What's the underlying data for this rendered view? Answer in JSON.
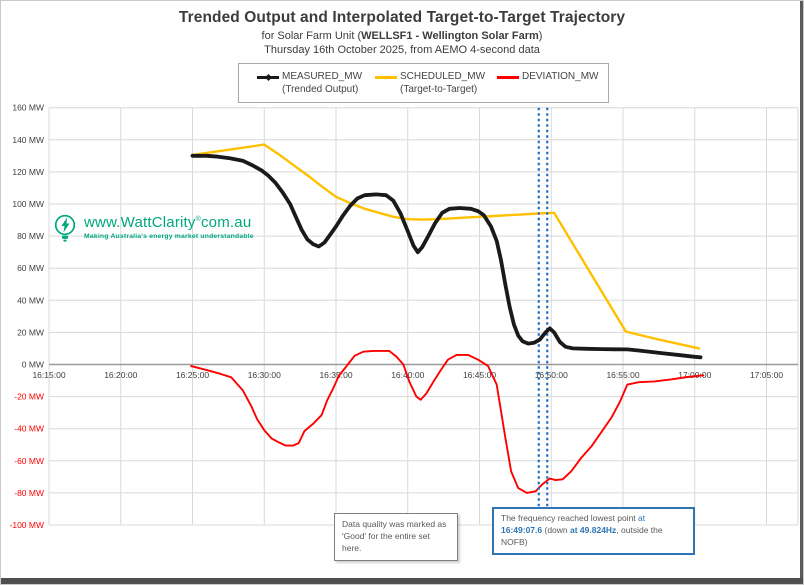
{
  "header": {
    "title": "Trended Output and Interpolated Target-to-Target Trajectory",
    "subtitle_prefix": "for Solar Farm Unit (",
    "subtitle_bold": "WELLSF1 - Wellington Solar Farm",
    "subtitle_suffix": ")",
    "dateline": "Thursday 16th October 2025, from AEMO 4-second data"
  },
  "legend": {
    "entries": [
      {
        "label": "MEASURED_MW",
        "sublabel": "(Trended Output)"
      },
      {
        "label": "SCHEDULED_MW",
        "sublabel": "(Target-to-Target)"
      },
      {
        "label": "DEVIATION_MW",
        "sublabel": ""
      }
    ]
  },
  "watermark": {
    "url_main": "www.WattClarity",
    "url_reg": "®",
    "url_tail": "com.au",
    "tagline": "Making Australia's energy market understandable",
    "color": "#00a87c"
  },
  "annotations": {
    "data_quality": {
      "text": "Data quality was marked as 'Good' for the entire set here."
    },
    "frequency": {
      "segments": [
        {
          "text": "The frequency reached lowest point ",
          "style": "plain"
        },
        {
          "text": "at ",
          "style": "blue"
        },
        {
          "text": "16:49:07.6",
          "style": "blue-bold"
        },
        {
          "text": " (down ",
          "style": "plain"
        },
        {
          "text": "at 49.824Hz",
          "style": "blue-bold"
        },
        {
          "text": ", outside the NOFB)",
          "style": "plain"
        }
      ]
    }
  },
  "chart_data": {
    "type": "line",
    "title": "Trended Output and Interpolated Target-to-Target Trajectory",
    "x_axis": {
      "ticks": [
        "16:15:00",
        "16:20:00",
        "16:25:00",
        "16:30:00",
        "16:35:00",
        "16:40:00",
        "16:45:00",
        "16:50:00",
        "16:55:00",
        "17:00:00",
        "17:05:00"
      ],
      "start_min": 15,
      "end_min": 65,
      "tick_interval_min": 5
    },
    "y_axis": {
      "min": -100,
      "max": 160,
      "step": 20,
      "unit": "MW",
      "negative_label_color": "#ff0000",
      "positive_label_color": "#404040"
    },
    "grid": {
      "color": "#d9d9d9",
      "zero_line_color": "#9b9b9b"
    },
    "series": [
      {
        "name": "MEASURED_MW",
        "color": "#1a1a1a",
        "points": [
          [
            25,
            130
          ],
          [
            26,
            130
          ],
          [
            26.8,
            129.5
          ],
          [
            27.6,
            128.5
          ],
          [
            28.5,
            127
          ],
          [
            29.2,
            124
          ],
          [
            29.8,
            121
          ],
          [
            30.3,
            117.5
          ],
          [
            30.8,
            113
          ],
          [
            31.3,
            107
          ],
          [
            31.8,
            100
          ],
          [
            32.2,
            92
          ],
          [
            32.6,
            84
          ],
          [
            33,
            78
          ],
          [
            33.4,
            75
          ],
          [
            33.8,
            73.5
          ],
          [
            34.2,
            76
          ],
          [
            34.6,
            81
          ],
          [
            35,
            86
          ],
          [
            35.5,
            93
          ],
          [
            36,
            99
          ],
          [
            36.5,
            103.5
          ],
          [
            37,
            105.5
          ],
          [
            37.8,
            106
          ],
          [
            38.5,
            105.5
          ],
          [
            39,
            102
          ],
          [
            39.5,
            94
          ],
          [
            40,
            83
          ],
          [
            40.4,
            74
          ],
          [
            40.7,
            70
          ],
          [
            41,
            73
          ],
          [
            41.4,
            79.5
          ],
          [
            41.9,
            88
          ],
          [
            42.4,
            94.5
          ],
          [
            42.9,
            97
          ],
          [
            43.6,
            97.5
          ],
          [
            44.4,
            97
          ],
          [
            44.9,
            95.5
          ],
          [
            45.3,
            93
          ],
          [
            45.8,
            86
          ],
          [
            46.2,
            77
          ],
          [
            46.5,
            65
          ],
          [
            46.8,
            50
          ],
          [
            47.1,
            36
          ],
          [
            47.4,
            25
          ],
          [
            47.7,
            18
          ],
          [
            48,
            14.5
          ],
          [
            48.4,
            13
          ],
          [
            48.8,
            13.5
          ],
          [
            49.2,
            15.5
          ],
          [
            49.6,
            20
          ],
          [
            49.9,
            22.5
          ],
          [
            50.2,
            20
          ],
          [
            50.6,
            14
          ],
          [
            51,
            11
          ],
          [
            51.5,
            10
          ],
          [
            52.5,
            9.8
          ],
          [
            53.5,
            9.6
          ],
          [
            54.5,
            9.5
          ],
          [
            55.3,
            9.4
          ],
          [
            56,
            8.8
          ],
          [
            57,
            7.8
          ],
          [
            58,
            6.8
          ],
          [
            59,
            5.8
          ],
          [
            60,
            4.8
          ],
          [
            60.4,
            4.5
          ]
        ]
      },
      {
        "name": "SCHEDULED_MW",
        "color": "#ffc000",
        "points": [
          [
            25,
            130.5
          ],
          [
            30,
            137
          ],
          [
            31,
            131
          ],
          [
            32,
            124.5
          ],
          [
            33,
            118
          ],
          [
            34,
            111
          ],
          [
            35,
            104.5
          ],
          [
            36,
            100.5
          ],
          [
            37,
            97
          ],
          [
            38,
            94.5
          ],
          [
            39,
            92
          ],
          [
            40,
            90.5
          ],
          [
            41,
            90.3
          ],
          [
            42,
            90.5
          ],
          [
            43,
            91
          ],
          [
            44,
            91.5
          ],
          [
            45,
            92
          ],
          [
            46,
            92.5
          ],
          [
            47,
            93
          ],
          [
            48,
            93.5
          ],
          [
            49,
            94
          ],
          [
            50.2,
            94.5
          ],
          [
            55.2,
            20.5
          ],
          [
            57.5,
            15.5
          ],
          [
            60.3,
            10
          ]
        ]
      },
      {
        "name": "DEVIATION_MW",
        "color": "#ff0000",
        "points": [
          [
            24.9,
            -1
          ],
          [
            26,
            -3.5
          ],
          [
            27,
            -6
          ],
          [
            27.7,
            -8
          ],
          [
            28.5,
            -16
          ],
          [
            29.1,
            -26
          ],
          [
            29.5,
            -34
          ],
          [
            30,
            -41
          ],
          [
            30.5,
            -46
          ],
          [
            31,
            -48.5
          ],
          [
            31.5,
            -50.5
          ],
          [
            32,
            -50.5
          ],
          [
            32.4,
            -49
          ],
          [
            32.8,
            -41.5
          ],
          [
            33.4,
            -37
          ],
          [
            34,
            -31.5
          ],
          [
            34.4,
            -22
          ],
          [
            34.8,
            -15
          ],
          [
            35.2,
            -7
          ],
          [
            35.7,
            -1.5
          ],
          [
            36.3,
            5.5
          ],
          [
            36.9,
            8
          ],
          [
            37.6,
            8.5
          ],
          [
            38.7,
            8.5
          ],
          [
            39.2,
            5
          ],
          [
            39.7,
            0
          ],
          [
            40.1,
            -10.5
          ],
          [
            40.6,
            -20
          ],
          [
            40.9,
            -22
          ],
          [
            41.3,
            -18
          ],
          [
            41.8,
            -10.5
          ],
          [
            42.3,
            -3.5
          ],
          [
            42.8,
            3
          ],
          [
            43.4,
            6
          ],
          [
            44.2,
            6
          ],
          [
            44.9,
            3
          ],
          [
            45.6,
            -1
          ],
          [
            46.2,
            -12.5
          ],
          [
            46.8,
            -45.5
          ],
          [
            47.2,
            -66.5
          ],
          [
            47.7,
            -77
          ],
          [
            48.3,
            -80
          ],
          [
            48.9,
            -79
          ],
          [
            49.4,
            -74.5
          ],
          [
            49.9,
            -71
          ],
          [
            50.3,
            -72
          ],
          [
            50.8,
            -71.5
          ],
          [
            51.4,
            -66.5
          ],
          [
            52.1,
            -58
          ],
          [
            52.8,
            -51
          ],
          [
            53.5,
            -42
          ],
          [
            54.2,
            -33
          ],
          [
            54.8,
            -23
          ],
          [
            55.3,
            -12.5
          ],
          [
            56.1,
            -11
          ],
          [
            57.2,
            -10.5
          ],
          [
            58.4,
            -9.2
          ],
          [
            59.5,
            -7.8
          ],
          [
            60.6,
            -6.7
          ]
        ]
      }
    ],
    "event_markers": {
      "description": "vertical dashed lines near frequency event",
      "times_min": [
        49.13,
        49.72
      ],
      "times_label": [
        "16:49:08",
        "16:49:43"
      ],
      "color": "#1f6fc5"
    },
    "legend_position": "top-center"
  }
}
